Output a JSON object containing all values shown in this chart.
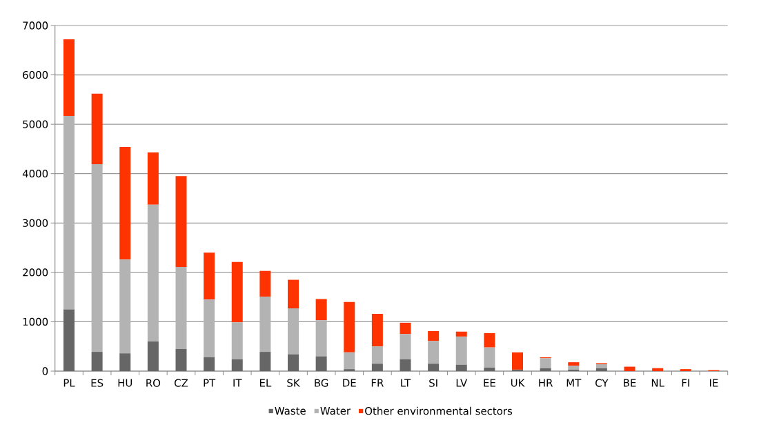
{
  "chart_data": {
    "type": "bar",
    "stacked": true,
    "categories": [
      "PL",
      "ES",
      "HU",
      "RO",
      "CZ",
      "PT",
      "IT",
      "EL",
      "SK",
      "BG",
      "DE",
      "FR",
      "LT",
      "SI",
      "LV",
      "EE",
      "UK",
      "HR",
      "MT",
      "CY",
      "BE",
      "NL",
      "FI",
      "IE"
    ],
    "series": [
      {
        "name": "Waste",
        "color": "#666666",
        "values": [
          1250,
          390,
          360,
          600,
          450,
          280,
          240,
          390,
          340,
          300,
          40,
          150,
          240,
          150,
          130,
          70,
          30,
          60,
          30,
          60,
          0,
          0,
          0,
          0
        ]
      },
      {
        "name": "Water",
        "color": "#b3b3b3",
        "values": [
          3920,
          3800,
          1900,
          2770,
          1660,
          1170,
          750,
          1120,
          930,
          730,
          340,
          350,
          510,
          460,
          570,
          410,
          0,
          200,
          80,
          80,
          0,
          0,
          0,
          0
        ]
      },
      {
        "name": "Other environmental sectors",
        "color": "#ff3300",
        "values": [
          1550,
          1430,
          2280,
          1060,
          1840,
          950,
          1220,
          520,
          580,
          430,
          1020,
          660,
          230,
          200,
          100,
          290,
          350,
          20,
          70,
          20,
          90,
          60,
          40,
          20
        ]
      }
    ],
    "ylim": [
      0,
      7000
    ],
    "yticks": [
      0,
      1000,
      2000,
      3000,
      4000,
      5000,
      6000,
      7000
    ],
    "grid": "y",
    "legend": "bottom"
  }
}
